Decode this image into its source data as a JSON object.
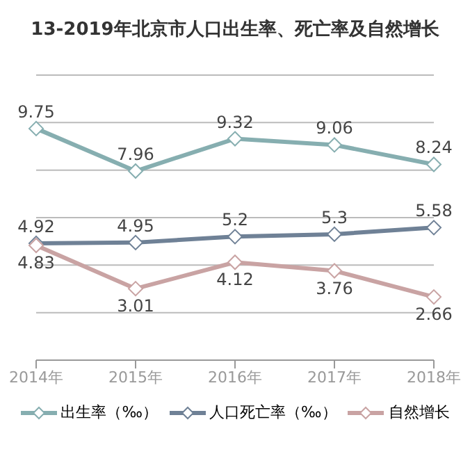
{
  "chart_data": {
    "type": "line",
    "title": "13-2019年北京市人口出生率、死亡率及自然增长",
    "categories": [
      "2014年",
      "2015年",
      "2016年",
      "2017年",
      "2018年"
    ],
    "series": [
      {
        "name": "出生率（‰）",
        "color": "#86aeb0",
        "values": [
          9.75,
          7.96,
          9.32,
          9.06,
          8.24
        ]
      },
      {
        "name": "人口死亡率（‰）",
        "color": "#6f8196",
        "values": [
          4.92,
          4.95,
          5.2,
          5.3,
          5.58
        ]
      },
      {
        "name": "自然增长",
        "color": "#c9a3a3",
        "values": [
          4.83,
          3.01,
          4.12,
          3.76,
          2.66
        ]
      }
    ],
    "ylim": [
      0,
      12
    ],
    "yticks": [
      {
        "value": 0,
        "label": null
      },
      {
        "value": 2,
        "label": null
      },
      {
        "value": 4,
        "label": null
      },
      {
        "value": 6,
        "label": null
      },
      {
        "value": 8,
        "label": null
      },
      {
        "value": 10,
        "label": null
      },
      {
        "value": 12,
        "label": null
      }
    ],
    "tick_labels": "x",
    "grid": "y",
    "marker": "diamond",
    "line_style": "solid",
    "data_labels": true,
    "legend": "bottom"
  }
}
